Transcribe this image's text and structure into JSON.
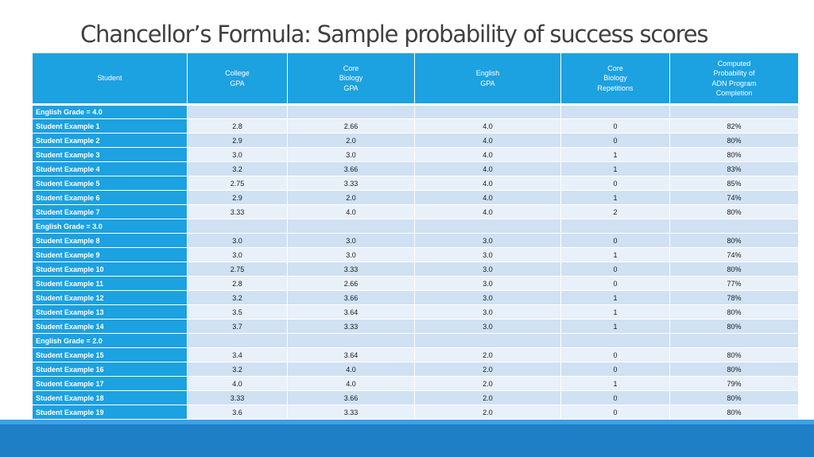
{
  "title": "Chancellor’s Formula: Sample probability of success scores",
  "colors": {
    "header_blue": "#1ca1e1",
    "row_dark": "#cfe1f2",
    "row_light": "#e8f0f9",
    "footer_blue": "#1f7fc6"
  },
  "table": {
    "headers": [
      [
        "Student"
      ],
      [
        "College",
        "GPA"
      ],
      [
        "Core",
        "Biology",
        "GPA"
      ],
      [
        "English",
        "GPA"
      ],
      [
        "Core",
        "Biology",
        "Repetitions"
      ],
      [
        "Computed",
        "Probability of",
        "ADN Program",
        "Completion"
      ]
    ],
    "rows": [
      {
        "type": "group",
        "label": "English Grade = 4.0"
      },
      {
        "type": "data",
        "label": "Student Example 1",
        "values": [
          "2.8",
          "2.66",
          "4.0",
          "0",
          "82%"
        ]
      },
      {
        "type": "data",
        "label": "Student Example 2",
        "values": [
          "2.9",
          "2.0",
          "4.0",
          "0",
          "80%"
        ]
      },
      {
        "type": "data",
        "label": "Student Example 3",
        "values": [
          "3.0",
          "3.0",
          "4.0",
          "1",
          "80%"
        ]
      },
      {
        "type": "data",
        "label": "Student Example 4",
        "values": [
          "3.2",
          "3.66",
          "4.0",
          "1",
          "83%"
        ]
      },
      {
        "type": "data",
        "label": "Student Example 5",
        "values": [
          "2.75",
          "3.33",
          "4.0",
          "0",
          "85%"
        ]
      },
      {
        "type": "data",
        "label": "Student Example 6",
        "values": [
          "2.9",
          "2.0",
          "4.0",
          "1",
          "74%"
        ]
      },
      {
        "type": "data",
        "label": "Student Example 7",
        "values": [
          "3.33",
          "4.0",
          "4.0",
          "2",
          "80%"
        ]
      },
      {
        "type": "group",
        "label": "English Grade = 3.0"
      },
      {
        "type": "data",
        "label": "Student Example 8",
        "values": [
          "3.0",
          "3.0",
          "3.0",
          "0",
          "80%"
        ]
      },
      {
        "type": "data",
        "label": "Student Example 9",
        "values": [
          "3.0",
          "3.0",
          "3.0",
          "1",
          "74%"
        ]
      },
      {
        "type": "data",
        "label": "Student Example 10",
        "values": [
          "2.75",
          "3.33",
          "3.0",
          "0",
          "80%"
        ]
      },
      {
        "type": "data",
        "label": "Student Example 11",
        "values": [
          "2.8",
          "2.66",
          "3.0",
          "0",
          "77%"
        ]
      },
      {
        "type": "data",
        "label": "Student Example 12",
        "values": [
          "3.2",
          "3.66",
          "3.0",
          "1",
          "78%"
        ]
      },
      {
        "type": "data",
        "label": "Student Example 13",
        "values": [
          "3.5",
          "3.64",
          "3.0",
          "1",
          "80%"
        ]
      },
      {
        "type": "data",
        "label": "Student Example 14",
        "values": [
          "3.7",
          "3.33",
          "3.0",
          "1",
          "80%"
        ]
      },
      {
        "type": "group",
        "label": "English Grade = 2.0"
      },
      {
        "type": "data",
        "label": "Student Example 15",
        "values": [
          "3.4",
          "3.64",
          "2.0",
          "0",
          "80%"
        ]
      },
      {
        "type": "data",
        "label": "Student Example 16",
        "values": [
          "3.2",
          "4.0",
          "2.0",
          "0",
          "80%"
        ]
      },
      {
        "type": "data",
        "label": "Student Example 17",
        "values": [
          "4.0",
          "4.0",
          "2.0",
          "1",
          "79%"
        ]
      },
      {
        "type": "data",
        "label": "Student Example 18",
        "values": [
          "3.33",
          "3.66",
          "2.0",
          "0",
          "80%"
        ]
      },
      {
        "type": "data",
        "label": "Student Example 19",
        "values": [
          "3.6",
          "3.33",
          "2.0",
          "0",
          "80%"
        ]
      }
    ]
  }
}
